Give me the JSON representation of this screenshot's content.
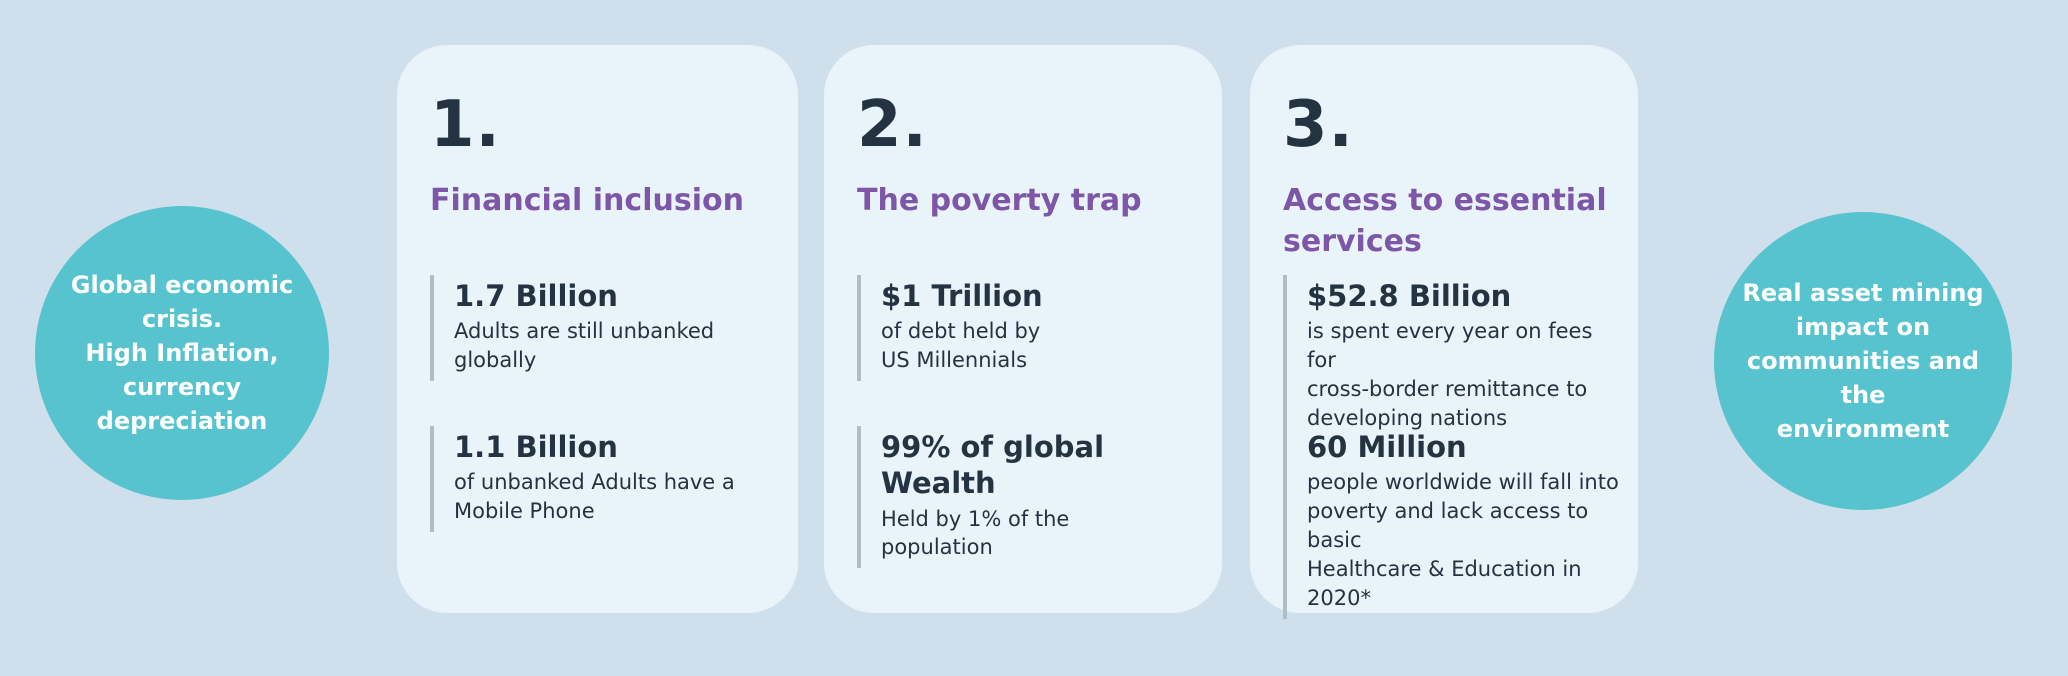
{
  "colors": {
    "page_bg": "#cfe0ec",
    "card_bg": "#e8f3fa",
    "teal": "#56c3cf",
    "purple": "#7e56a7",
    "dark": "#243341",
    "bar_grey": "#b2bcc4"
  },
  "left_circle": {
    "lines": [
      "Global economic",
      "crisis.",
      "High Inflation,",
      "currency",
      "depreciation"
    ]
  },
  "right_circle": {
    "lines": [
      "Real asset  mining",
      "impact on",
      "communities and the",
      "environment"
    ]
  },
  "cards": [
    {
      "number": "1.",
      "title": "Financial inclusion",
      "stats": [
        {
          "value": "1.7 Billion",
          "desc_lines": [
            "Adults are still unbanked",
            "globally"
          ]
        },
        {
          "value": "1.1 Billion",
          "desc_lines": [
            "of unbanked Adults have a",
            "Mobile Phone"
          ]
        }
      ]
    },
    {
      "number": "2.",
      "title": "The poverty trap",
      "stats": [
        {
          "value": "$1 Trillion",
          "desc_lines": [
            "of debt held by",
            "US Millennials"
          ]
        },
        {
          "value": "99% of global Wealth",
          "desc_lines": [
            "Held by 1% of the",
            "population"
          ]
        }
      ]
    },
    {
      "number": "3.",
      "title": "Access to essential services",
      "stats": [
        {
          "value": "$52.8 Billion",
          "desc_lines": [
            "is spent every year on fees for",
            "cross-border remittance to",
            "developing nations"
          ]
        },
        {
          "value": "60 Million",
          "desc_lines": [
            "people worldwide will fall into",
            "poverty and lack access to basic",
            "Healthcare & Education in 2020*"
          ]
        }
      ]
    }
  ]
}
